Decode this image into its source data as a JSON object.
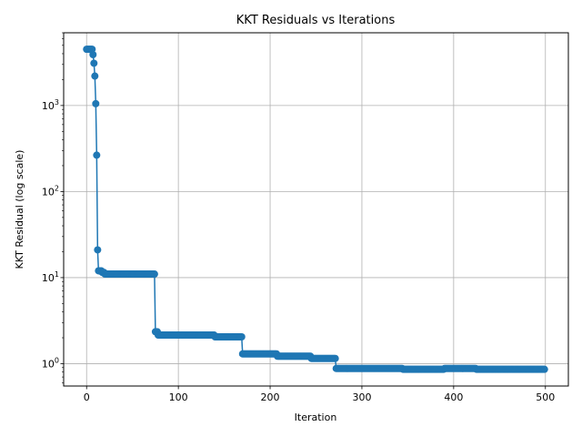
{
  "chart_data": {
    "type": "line",
    "title": "KKT Residuals vs Iterations",
    "xlabel": "Iteration",
    "ylabel": "KKT Residual (log scale)",
    "xlim": [
      -25,
      525
    ],
    "ylim": [
      0.55,
      7000
    ],
    "yscale": "log",
    "grid": true,
    "color": "#1f77b4",
    "marker": "circle",
    "xticks": [
      {
        "value": 0,
        "label": "0"
      },
      {
        "value": 100,
        "label": "100"
      },
      {
        "value": 200,
        "label": "200"
      },
      {
        "value": 300,
        "label": "300"
      },
      {
        "value": 400,
        "label": "400"
      },
      {
        "value": 500,
        "label": "500"
      }
    ],
    "yticks": [
      {
        "value": 1,
        "base": "10",
        "exp": "0"
      },
      {
        "value": 10,
        "base": "10",
        "exp": "1"
      },
      {
        "value": 100,
        "base": "10",
        "exp": "2"
      },
      {
        "value": 1000,
        "base": "10",
        "exp": "3"
      }
    ],
    "series": [
      {
        "segments": [
          {
            "x_start": 0,
            "x_end": 6,
            "y": 4500
          },
          {
            "x_start": 7,
            "x_end": 7,
            "y": 3900
          },
          {
            "x_start": 8,
            "x_end": 8,
            "y": 3100
          },
          {
            "x_start": 9,
            "x_end": 9,
            "y": 2200
          },
          {
            "x_start": 10,
            "x_end": 10,
            "y": 1050
          },
          {
            "x_start": 11,
            "x_end": 11,
            "y": 265
          },
          {
            "x_start": 12,
            "x_end": 12,
            "y": 21
          },
          {
            "x_start": 13,
            "x_end": 16,
            "y": 12
          },
          {
            "x_start": 17,
            "x_end": 19,
            "y": 11.5
          },
          {
            "x_start": 20,
            "x_end": 74,
            "y": 11
          },
          {
            "x_start": 75,
            "x_end": 77,
            "y": 2.35
          },
          {
            "x_start": 78,
            "x_end": 139,
            "y": 2.15
          },
          {
            "x_start": 140,
            "x_end": 169,
            "y": 2.05
          },
          {
            "x_start": 170,
            "x_end": 207,
            "y": 1.3
          },
          {
            "x_start": 208,
            "x_end": 244,
            "y": 1.22
          },
          {
            "x_start": 245,
            "x_end": 271,
            "y": 1.15
          },
          {
            "x_start": 272,
            "x_end": 344,
            "y": 0.88
          },
          {
            "x_start": 345,
            "x_end": 389,
            "y": 0.86
          },
          {
            "x_start": 390,
            "x_end": 424,
            "y": 0.88
          },
          {
            "x_start": 425,
            "x_end": 499,
            "y": 0.86
          }
        ]
      }
    ]
  }
}
